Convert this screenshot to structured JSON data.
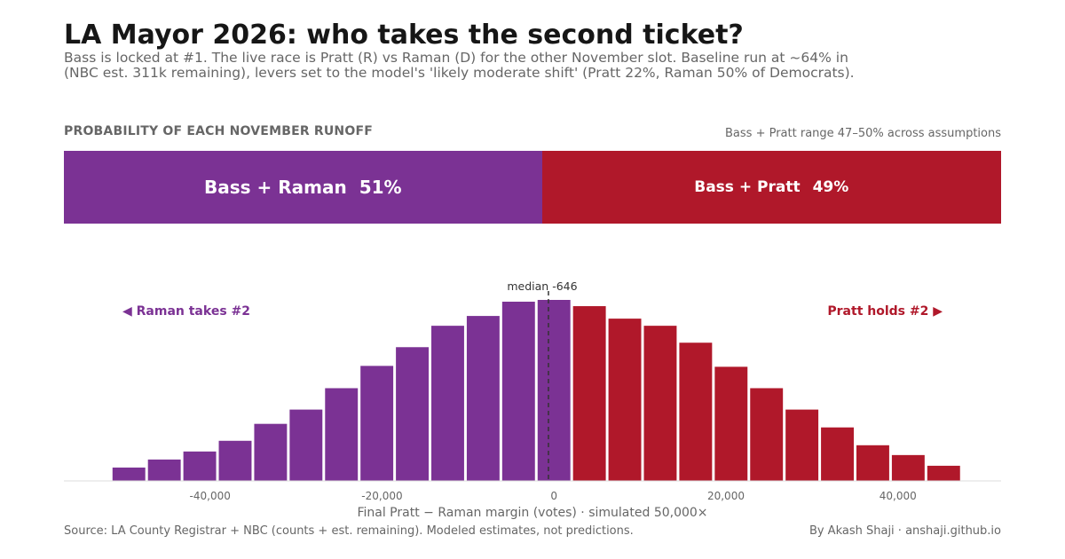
{
  "header": {
    "title": "LA Mayor 2026: who takes the second ticket?",
    "subtitle_line1": "Bass is locked at #1. The live race is Pratt (R) vs Raman (D) for the other November slot. Baseline run at ~64% in",
    "subtitle_line2": "(NBC est. 311k remaining), levers set to the model's 'likely moderate shift' (Pratt 22%, Raman 50% of Democrats)."
  },
  "runoff": {
    "section_label": "PROBABILITY OF EACH NOVEMBER RUNOFF",
    "range_note": "Bass + Pratt range 47–50% across assumptions",
    "segments": [
      {
        "label": "Bass + Raman",
        "pct_label": "51%",
        "value": 51,
        "color": "#7b3294"
      },
      {
        "label": "Bass + Pratt",
        "pct_label": "49%",
        "value": 49,
        "color": "#b0182a"
      }
    ]
  },
  "chart_data": {
    "type": "bar",
    "xlabel": "Final Pratt − Raman margin (votes)  ·  simulated 50,000×",
    "xlim": [
      -57000,
      52000
    ],
    "x_ticks": [
      -40000,
      -20000,
      0,
      20000,
      40000
    ],
    "x_tick_labels": [
      "-40,000",
      "-20,000",
      "0",
      "20,000",
      "40,000"
    ],
    "bin_width": 4120,
    "bins": [
      {
        "x0": -51500,
        "x1": -47380,
        "value": 15,
        "side": "raman"
      },
      {
        "x0": -47380,
        "x1": -43260,
        "value": 24,
        "side": "raman"
      },
      {
        "x0": -43260,
        "x1": -39140,
        "value": 33,
        "side": "raman"
      },
      {
        "x0": -39140,
        "x1": -35020,
        "value": 45,
        "side": "raman"
      },
      {
        "x0": -35020,
        "x1": -30900,
        "value": 64,
        "side": "raman"
      },
      {
        "x0": -30900,
        "x1": -26780,
        "value": 80,
        "side": "raman"
      },
      {
        "x0": -26780,
        "x1": -22660,
        "value": 104,
        "side": "raman"
      },
      {
        "x0": -22660,
        "x1": -18540,
        "value": 129,
        "side": "raman"
      },
      {
        "x0": -18540,
        "x1": -14420,
        "value": 150,
        "side": "raman"
      },
      {
        "x0": -14420,
        "x1": -10300,
        "value": 174,
        "side": "raman"
      },
      {
        "x0": -10300,
        "x1": -6180,
        "value": 185,
        "side": "raman"
      },
      {
        "x0": -6180,
        "x1": -2060,
        "value": 201,
        "side": "raman"
      },
      {
        "x0": -2060,
        "x1": 2060,
        "value": 203,
        "side": "raman"
      },
      {
        "x0": 2060,
        "x1": 6180,
        "value": 196,
        "side": "pratt"
      },
      {
        "x0": 6180,
        "x1": 10300,
        "value": 182,
        "side": "pratt"
      },
      {
        "x0": 10300,
        "x1": 14420,
        "value": 174,
        "side": "pratt"
      },
      {
        "x0": 14420,
        "x1": 18540,
        "value": 155,
        "side": "pratt"
      },
      {
        "x0": 18540,
        "x1": 22660,
        "value": 128,
        "side": "pratt"
      },
      {
        "x0": 22660,
        "x1": 26780,
        "value": 104,
        "side": "pratt"
      },
      {
        "x0": 26780,
        "x1": 30900,
        "value": 80,
        "side": "pratt"
      },
      {
        "x0": 30900,
        "x1": 35020,
        "value": 60,
        "side": "pratt"
      },
      {
        "x0": 35020,
        "x1": 39140,
        "value": 40,
        "side": "pratt"
      },
      {
        "x0": 39140,
        "x1": 43260,
        "value": 29,
        "side": "pratt"
      },
      {
        "x0": 43260,
        "x1": 47380,
        "value": 17,
        "side": "pratt"
      }
    ],
    "median": -646,
    "median_label": "median -646",
    "annotation_left": "◀ Raman takes #2",
    "annotation_right": "Pratt holds #2 ▶",
    "colors": {
      "raman": "#7b3294",
      "pratt": "#b0182a",
      "axis": "#dddddd",
      "median": "#333333",
      "tick": "#666666"
    },
    "grid": false
  },
  "footer": {
    "source": "Source: LA County Registrar + NBC (counts + est. remaining). Modeled estimates, not predictions.",
    "byline": "By Akash Shaji · anshaji.github.io"
  }
}
